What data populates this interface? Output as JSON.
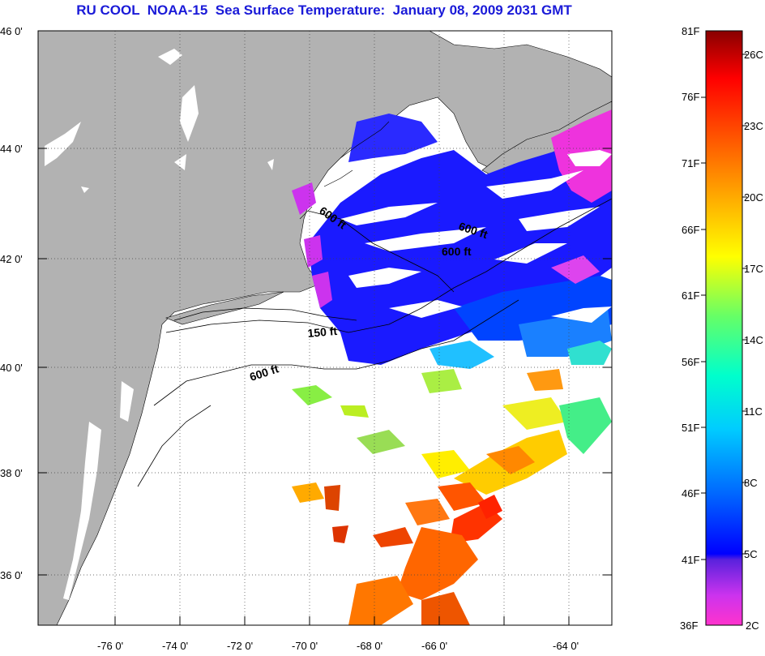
{
  "title": "RU COOL  NOAA-15  Sea Surface Temperature:  January 08, 2009 2031 GMT",
  "lat_labels": [
    "46 0'",
    "44 0'",
    "42 0'",
    "40 0'",
    "38 0'",
    "36 0'"
  ],
  "lon_labels": [
    "-76 0'",
    "-74 0'",
    "-72 0'",
    "-70 0'",
    "-68 0'",
    "-66 0'",
    "-64 0'"
  ],
  "contour_labels": [
    "600 ft",
    "600 ft",
    "600 ft",
    "150 ft",
    "600 ft"
  ],
  "colorbar": {
    "fahrenheit": [
      "81F",
      "76F",
      "71F",
      "66F",
      "61F",
      "56F",
      "51F",
      "46F",
      "41F",
      "36F"
    ],
    "celsius": [
      "26C",
      "23C",
      "20C",
      "17C",
      "14C",
      "11C",
      "8C",
      "5C",
      "2C"
    ]
  },
  "colors": {
    "title": "#1a1ad8",
    "land": "#b2b2b2",
    "cloud": "#ffffff"
  }
}
